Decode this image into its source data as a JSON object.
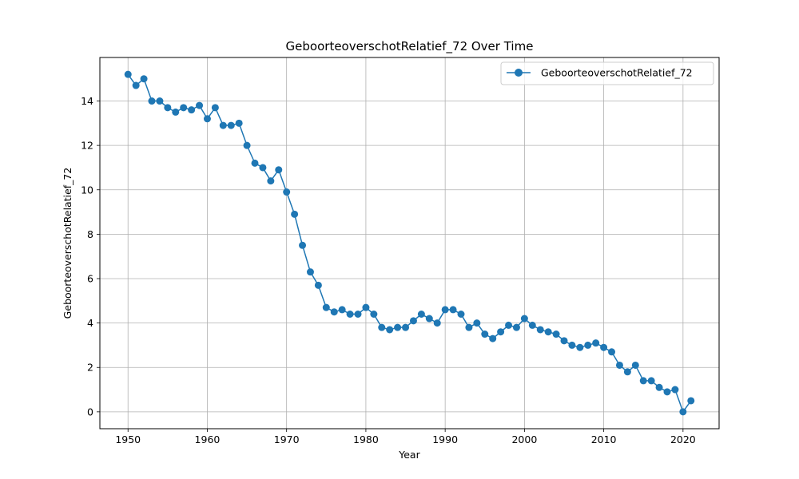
{
  "chart_data": {
    "type": "line",
    "title": "GeboorteoverschotRelatief_72 Over Time",
    "xlabel": "Year",
    "ylabel": "GeboorteoverschotRelatief_72",
    "xlim": [
      1946.45,
      2024.55
    ],
    "ylim": [
      -0.76,
      15.96
    ],
    "x_ticks": [
      1950,
      1960,
      1970,
      1980,
      1990,
      2000,
      2010,
      2020
    ],
    "y_ticks": [
      0,
      2,
      4,
      6,
      8,
      10,
      12,
      14
    ],
    "grid": true,
    "legend_position": "top-right",
    "series": [
      {
        "name": "GeboorteoverschotRelatief_72",
        "color": "#1f77b4",
        "x": [
          1950,
          1951,
          1952,
          1953,
          1954,
          1955,
          1956,
          1957,
          1958,
          1959,
          1960,
          1961,
          1962,
          1963,
          1964,
          1965,
          1966,
          1967,
          1968,
          1969,
          1970,
          1971,
          1972,
          1973,
          1974,
          1975,
          1976,
          1977,
          1978,
          1979,
          1980,
          1981,
          1982,
          1983,
          1984,
          1985,
          1986,
          1987,
          1988,
          1989,
          1990,
          1991,
          1992,
          1993,
          1994,
          1995,
          1996,
          1997,
          1998,
          1999,
          2000,
          2001,
          2002,
          2003,
          2004,
          2005,
          2006,
          2007,
          2008,
          2009,
          2010,
          2011,
          2012,
          2013,
          2014,
          2015,
          2016,
          2017,
          2018,
          2019,
          2020,
          2021
        ],
        "y": [
          15.2,
          14.7,
          15.0,
          14.0,
          14.0,
          13.7,
          13.5,
          13.7,
          13.6,
          13.8,
          13.2,
          13.7,
          12.9,
          12.9,
          13.0,
          12.0,
          11.2,
          11.0,
          10.4,
          10.9,
          9.9,
          8.9,
          7.5,
          6.3,
          5.7,
          4.7,
          4.5,
          4.6,
          4.4,
          4.4,
          4.7,
          4.4,
          3.8,
          3.7,
          3.8,
          3.8,
          4.1,
          4.4,
          4.2,
          4.0,
          4.6,
          4.6,
          4.4,
          3.8,
          4.0,
          3.5,
          3.3,
          3.6,
          3.9,
          3.8,
          4.2,
          3.9,
          3.7,
          3.6,
          3.5,
          3.2,
          3.0,
          2.9,
          3.0,
          3.1,
          2.9,
          2.7,
          2.1,
          1.8,
          2.1,
          1.4,
          1.4,
          1.1,
          0.9,
          1.0,
          0.0,
          0.5
        ]
      }
    ]
  }
}
